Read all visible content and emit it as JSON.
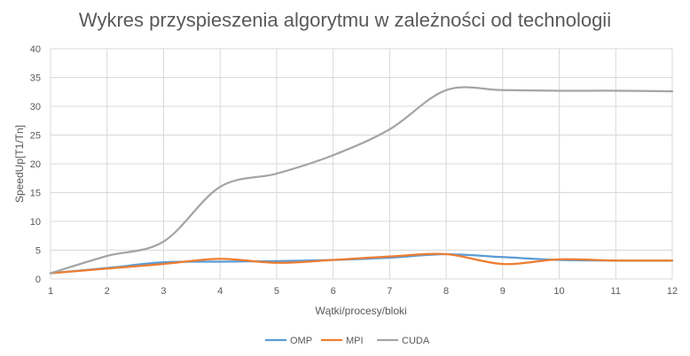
{
  "chart_data": {
    "type": "line",
    "title": "Wykres przyspieszenia algorytmu w zależności od technologii",
    "xlabel": "Wątki/procesy/bloki",
    "ylabel": "SpeedUp[T1/Tn]",
    "x": [
      1,
      2,
      3,
      4,
      5,
      6,
      7,
      8,
      9,
      10,
      11,
      12
    ],
    "xlim": [
      1,
      12
    ],
    "ylim": [
      0,
      40
    ],
    "yticks": [
      0,
      5,
      10,
      15,
      20,
      25,
      30,
      35,
      40
    ],
    "grid": true,
    "legend_position": "bottom",
    "series": [
      {
        "name": "OMP",
        "color": "#5B9BD5",
        "values": [
          1,
          1.9,
          2.9,
          3.0,
          3.1,
          3.3,
          3.7,
          4.3,
          3.8,
          3.3,
          3.2,
          3.2
        ]
      },
      {
        "name": "MPI",
        "color": "#ED7D31",
        "values": [
          1,
          1.8,
          2.6,
          3.5,
          2.8,
          3.3,
          3.9,
          4.3,
          2.6,
          3.4,
          3.2,
          3.2
        ]
      },
      {
        "name": "CUDA",
        "color": "#A5A5A5",
        "values": [
          1,
          4,
          6.5,
          16,
          18.3,
          21.5,
          26,
          32.8,
          32.8,
          32.7,
          32.7,
          32.6
        ]
      }
    ]
  }
}
